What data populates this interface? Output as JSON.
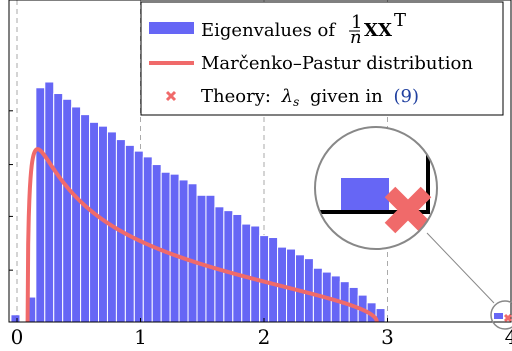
{
  "chart_data": {
    "type": "bar",
    "xlim": [
      -0.05,
      4.0
    ],
    "ylim": [
      0,
      1.32
    ],
    "grid": "dashed vertical lines",
    "legend_position": "top-right",
    "x_ticks": [
      "0",
      "1",
      "2",
      "3",
      "4"
    ],
    "histogram": {
      "name": "Eigenvalues of",
      "bin_width": 0.0725,
      "bin_start": 0.08,
      "values": [
        0.13,
        1.22,
        1.25,
        1.19,
        1.16,
        1.12,
        1.08,
        1.04,
        1.02,
        0.99,
        0.95,
        0.92,
        0.89,
        0.86,
        0.82,
        0.78,
        0.77,
        0.74,
        0.72,
        0.66,
        0.66,
        0.6,
        0.58,
        0.56,
        0.51,
        0.5,
        0.45,
        0.44,
        0.39,
        0.38,
        0.35,
        0.33,
        0.28,
        0.26,
        0.24,
        0.21,
        0.18,
        0.14,
        0.1,
        0.07
      ],
      "outlier": {
        "x": 4.0,
        "value": 0.02
      },
      "color": "#6666f5"
    },
    "curve": {
      "name": "Marčenko–Pastur distribution",
      "ratio": 0.5,
      "lambda_minus": 0.0858,
      "lambda_plus": 2.914,
      "color": "#f06a6a"
    },
    "theory": {
      "name_prefix": "Theory:",
      "symbol": "λ",
      "subscript": "s",
      "name_suffix": "given in",
      "ref": "(9)",
      "x": 4.0,
      "y": 0.0,
      "color": "#f06a6a"
    },
    "legend_math": {
      "frac_num": "1",
      "frac_den": "n",
      "matrix": "XX",
      "transpose": "T"
    }
  }
}
